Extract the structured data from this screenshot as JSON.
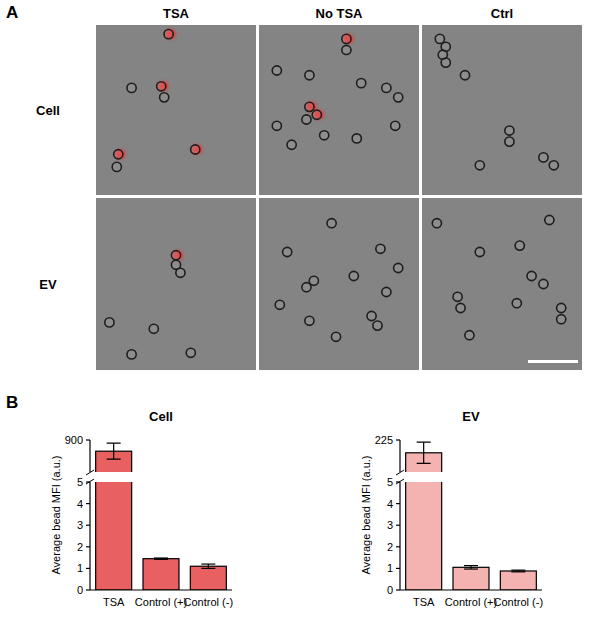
{
  "panel_labels": [
    "A",
    "B"
  ],
  "microscopy": {
    "columns": [
      "TSA",
      "No TSA",
      "Ctrl"
    ],
    "rows": [
      "Cell",
      "EV"
    ]
  },
  "chart_data": [
    {
      "type": "bar",
      "title": "Cell",
      "ylabel": "Average bead MFI (a.u.)",
      "categories": [
        "TSA",
        "Control (+)",
        "Control (-)"
      ],
      "values": [
        830,
        1.45,
        1.1
      ],
      "errors": [
        50,
        0.03,
        0.1
      ],
      "color": "#e8605f",
      "ylim": [
        0,
        900
      ],
      "ybreak": [
        5,
        700
      ],
      "yticks": [
        0,
        1,
        2,
        3,
        4,
        5,
        900
      ]
    },
    {
      "type": "bar",
      "title": "EV",
      "ylabel": "Average bead MFI (a.u.)",
      "categories": [
        "TSA",
        "Control (+)",
        "Control (-)"
      ],
      "values": [
        195,
        1.05,
        0.88
      ],
      "errors": [
        25,
        0.08,
        0.04
      ],
      "color": "#f4b2b0",
      "ylim": [
        0,
        225
      ],
      "ybreak": [
        5,
        150
      ],
      "yticks": [
        0,
        1,
        2,
        3,
        4,
        5,
        225
      ]
    }
  ]
}
